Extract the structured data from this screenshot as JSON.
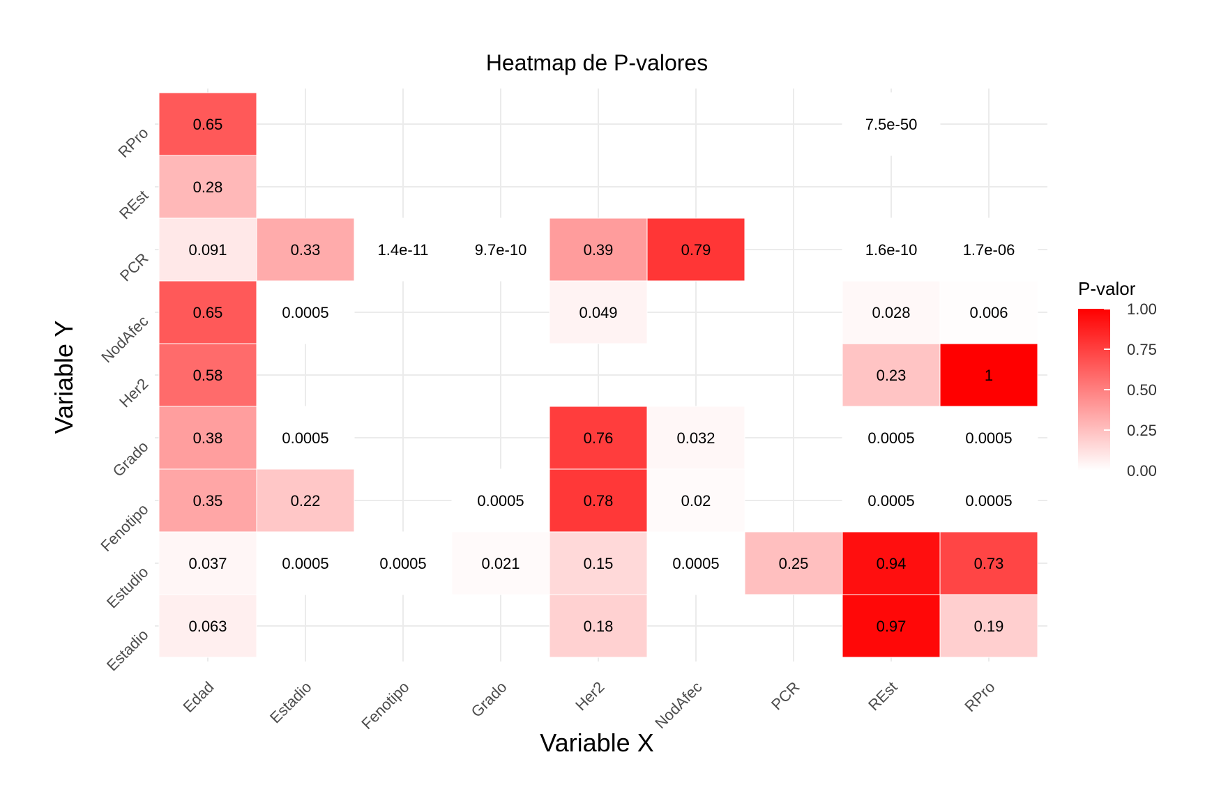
{
  "chart_data": {
    "type": "heatmap",
    "title": "Heatmap de P-valores",
    "xlabel": "Variable X",
    "ylabel": "Variable Y",
    "x_categories": [
      "Edad",
      "Estadio",
      "Fenotipo",
      "Grado",
      "Her2",
      "NodAfec",
      "PCR",
      "REst",
      "RPro"
    ],
    "y_categories": [
      "Estadio",
      "Estudio",
      "Fenotipo",
      "Grado",
      "Her2",
      "NodAfec",
      "PCR",
      "REst",
      "RPro"
    ],
    "cells": [
      {
        "x": "Edad",
        "y": "RPro",
        "value": 0.65,
        "label": "0.65"
      },
      {
        "x": "REst",
        "y": "RPro",
        "value": 7.5e-50,
        "label": "7.5e-50"
      },
      {
        "x": "Edad",
        "y": "REst",
        "value": 0.28,
        "label": "0.28"
      },
      {
        "x": "Edad",
        "y": "PCR",
        "value": 0.091,
        "label": "0.091"
      },
      {
        "x": "Estadio",
        "y": "PCR",
        "value": 0.33,
        "label": "0.33"
      },
      {
        "x": "Fenotipo",
        "y": "PCR",
        "value": 1.4e-11,
        "label": "1.4e-11"
      },
      {
        "x": "Grado",
        "y": "PCR",
        "value": 9.7e-10,
        "label": "9.7e-10"
      },
      {
        "x": "Her2",
        "y": "PCR",
        "value": 0.39,
        "label": "0.39"
      },
      {
        "x": "NodAfec",
        "y": "PCR",
        "value": 0.79,
        "label": "0.79"
      },
      {
        "x": "REst",
        "y": "PCR",
        "value": 1.6e-10,
        "label": "1.6e-10"
      },
      {
        "x": "RPro",
        "y": "PCR",
        "value": 1.7e-06,
        "label": "1.7e-06"
      },
      {
        "x": "Edad",
        "y": "NodAfec",
        "value": 0.65,
        "label": "0.65"
      },
      {
        "x": "Estadio",
        "y": "NodAfec",
        "value": 0.0005,
        "label": "0.0005"
      },
      {
        "x": "Her2",
        "y": "NodAfec",
        "value": 0.049,
        "label": "0.049"
      },
      {
        "x": "REst",
        "y": "NodAfec",
        "value": 0.028,
        "label": "0.028"
      },
      {
        "x": "RPro",
        "y": "NodAfec",
        "value": 0.006,
        "label": "0.006"
      },
      {
        "x": "Edad",
        "y": "Her2",
        "value": 0.58,
        "label": "0.58"
      },
      {
        "x": "REst",
        "y": "Her2",
        "value": 0.23,
        "label": "0.23"
      },
      {
        "x": "RPro",
        "y": "Her2",
        "value": 1,
        "label": "1"
      },
      {
        "x": "Edad",
        "y": "Grado",
        "value": 0.38,
        "label": "0.38"
      },
      {
        "x": "Estadio",
        "y": "Grado",
        "value": 0.0005,
        "label": "0.0005"
      },
      {
        "x": "Her2",
        "y": "Grado",
        "value": 0.76,
        "label": "0.76"
      },
      {
        "x": "NodAfec",
        "y": "Grado",
        "value": 0.032,
        "label": "0.032"
      },
      {
        "x": "REst",
        "y": "Grado",
        "value": 0.0005,
        "label": "0.0005"
      },
      {
        "x": "RPro",
        "y": "Grado",
        "value": 0.0005,
        "label": "0.0005"
      },
      {
        "x": "Edad",
        "y": "Fenotipo",
        "value": 0.35,
        "label": "0.35"
      },
      {
        "x": "Estadio",
        "y": "Fenotipo",
        "value": 0.22,
        "label": "0.22"
      },
      {
        "x": "Grado",
        "y": "Fenotipo",
        "value": 0.0005,
        "label": "0.0005"
      },
      {
        "x": "Her2",
        "y": "Fenotipo",
        "value": 0.78,
        "label": "0.78"
      },
      {
        "x": "NodAfec",
        "y": "Fenotipo",
        "value": 0.02,
        "label": "0.02"
      },
      {
        "x": "REst",
        "y": "Fenotipo",
        "value": 0.0005,
        "label": "0.0005"
      },
      {
        "x": "RPro",
        "y": "Fenotipo",
        "value": 0.0005,
        "label": "0.0005"
      },
      {
        "x": "Edad",
        "y": "Estudio",
        "value": 0.037,
        "label": "0.037"
      },
      {
        "x": "Estadio",
        "y": "Estudio",
        "value": 0.0005,
        "label": "0.0005"
      },
      {
        "x": "Fenotipo",
        "y": "Estudio",
        "value": 0.0005,
        "label": "0.0005"
      },
      {
        "x": "Grado",
        "y": "Estudio",
        "value": 0.021,
        "label": "0.021"
      },
      {
        "x": "Her2",
        "y": "Estudio",
        "value": 0.15,
        "label": "0.15"
      },
      {
        "x": "NodAfec",
        "y": "Estudio",
        "value": 0.0005,
        "label": "0.0005"
      },
      {
        "x": "PCR",
        "y": "Estudio",
        "value": 0.25,
        "label": "0.25"
      },
      {
        "x": "REst",
        "y": "Estudio",
        "value": 0.94,
        "label": "0.94"
      },
      {
        "x": "RPro",
        "y": "Estudio",
        "value": 0.73,
        "label": "0.73"
      },
      {
        "x": "Edad",
        "y": "Estadio",
        "value": 0.063,
        "label": "0.063"
      },
      {
        "x": "Her2",
        "y": "Estadio",
        "value": 0.18,
        "label": "0.18"
      },
      {
        "x": "REst",
        "y": "Estadio",
        "value": 0.97,
        "label": "0.97"
      },
      {
        "x": "RPro",
        "y": "Estadio",
        "value": 0.19,
        "label": "0.19"
      }
    ],
    "legend": {
      "title": "P-valor",
      "ticks": [
        "0.00",
        "0.25",
        "0.50",
        "0.75",
        "1.00"
      ],
      "range": [
        0,
        1
      ],
      "low_color": "#ffffff",
      "high_color": "#ff0000",
      "placement": "right"
    },
    "grid": true
  }
}
